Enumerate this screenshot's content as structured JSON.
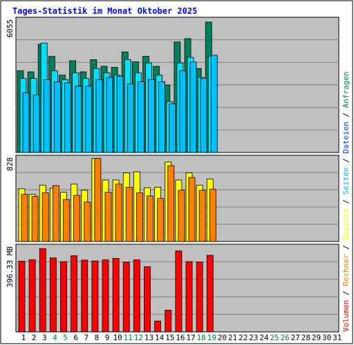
{
  "title": "Tages-Statistik im Monat Oktober 2025",
  "colors": {
    "title": "#0000ff",
    "background": "#ffffff",
    "panel": "#c0c0c0",
    "anfragen": "#00805c",
    "dateien": "#00e0ff",
    "seiten": "#00c0ff",
    "besuche": "#ffff00",
    "rechner": "#ff8000",
    "volumen": "#ff0000",
    "weekend_label": "#008040",
    "weekday_label": "#000000"
  },
  "chart_data": [
    {
      "type": "bar",
      "ymax_label": "6055",
      "ymax": 6055,
      "grid": true,
      "x": [
        1,
        2,
        3,
        4,
        5,
        6,
        7,
        8,
        9,
        10,
        11,
        12,
        13,
        14,
        15,
        16,
        17,
        18,
        19
      ],
      "series": [
        {
          "name": "Anfragen",
          "values": [
            3700,
            3650,
            4900,
            4350,
            3500,
            4150,
            3650,
            4200,
            3900,
            3850,
            4550,
            4100,
            4350,
            3900,
            3050,
            5000,
            5150,
            3800,
            5900
          ]
        },
        {
          "name": "Dateien",
          "values": [
            3350,
            3350,
            4950,
            3700,
            3300,
            3600,
            3350,
            3800,
            3600,
            3500,
            4200,
            3600,
            4050,
            3500,
            2300,
            4050,
            4300,
            3400,
            4350
          ]
        },
        {
          "name": "Seiten",
          "values": [
            2700,
            2600,
            3300,
            3200,
            3150,
            3000,
            3000,
            3300,
            3400,
            3450,
            3100,
            3200,
            3300,
            3200,
            2200,
            3700,
            4100,
            3350,
            4400
          ]
        }
      ]
    },
    {
      "type": "bar",
      "ymax_label": "828",
      "ymax": 828,
      "grid": true,
      "x": [
        1,
        2,
        3,
        4,
        5,
        6,
        7,
        8,
        9,
        10,
        11,
        12,
        13,
        14,
        15,
        16,
        17,
        18,
        19
      ],
      "series": [
        {
          "name": "Besuche",
          "values": [
            515,
            460,
            550,
            520,
            480,
            560,
            500,
            810,
            600,
            600,
            670,
            680,
            525,
            530,
            775,
            600,
            670,
            550,
            610
          ]
        },
        {
          "name": "Rechner",
          "values": [
            460,
            440,
            475,
            545,
            410,
            450,
            385,
            810,
            480,
            560,
            530,
            475,
            445,
            420,
            740,
            500,
            625,
            500,
            510
          ]
        }
      ]
    },
    {
      "type": "bar",
      "ymax_label": "396.33 MB",
      "ymax": 396.33,
      "grid": true,
      "x": [
        1,
        2,
        3,
        4,
        5,
        6,
        7,
        8,
        9,
        10,
        11,
        12,
        13,
        14,
        15,
        16,
        17,
        18,
        19
      ],
      "series": [
        {
          "name": "Volumen",
          "values": [
            325,
            332,
            383,
            340,
            323,
            350,
            330,
            326,
            331,
            338,
            320,
            331,
            300,
            50,
            100,
            372,
            323,
            321,
            352
          ]
        }
      ]
    }
  ],
  "x_labels": [
    "1",
    "2",
    "3",
    "4",
    "5",
    "6",
    "7",
    "8",
    "9",
    "10",
    "11",
    "12",
    "13",
    "14",
    "15",
    "16",
    "17",
    "18",
    "19",
    "20",
    "21",
    "22",
    "23",
    "24",
    "25",
    "26",
    "27",
    "28",
    "29",
    "30",
    "31"
  ],
  "weekend_days": [
    4,
    5,
    11,
    12,
    18,
    19,
    25,
    26
  ],
  "legend_top": {
    "anfragen": "Anfragen",
    "dateien": "Dateien",
    "seiten": "Seiten",
    "besuche": "Besuche",
    "rechner": "Rechner",
    "volumen": "Volumen",
    "sep": "/"
  }
}
